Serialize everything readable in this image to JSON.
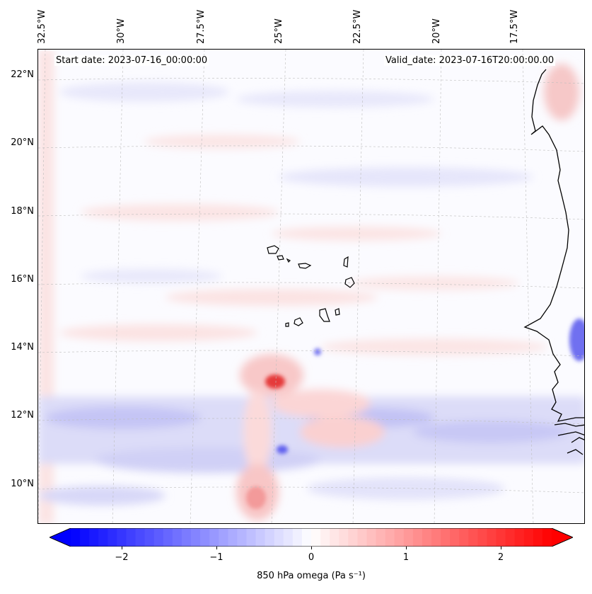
{
  "map": {
    "lon_labels": [
      "32.5°W",
      "30°W",
      "27.5°W",
      "25°W",
      "22.5°W",
      "20°W",
      "17.5°W"
    ],
    "lat_labels": [
      "22°N",
      "20°N",
      "18°N",
      "16°N",
      "14°N",
      "12°N",
      "10°N"
    ],
    "start_date": "Start date: 2023-07-16_00:00:00",
    "valid_date": "Valid_date: 2023-07-16T20:00:00.00",
    "variable": "850 hPa omega",
    "units": "Pa s⁻¹",
    "colormap": [
      "#0000ff",
      "#ffffff",
      "#ff0000"
    ],
    "colorbar_ticks": [
      "−2",
      "−1",
      "0",
      "1",
      "2"
    ],
    "colorbar_range": [
      -2.6,
      2.6
    ]
  }
}
